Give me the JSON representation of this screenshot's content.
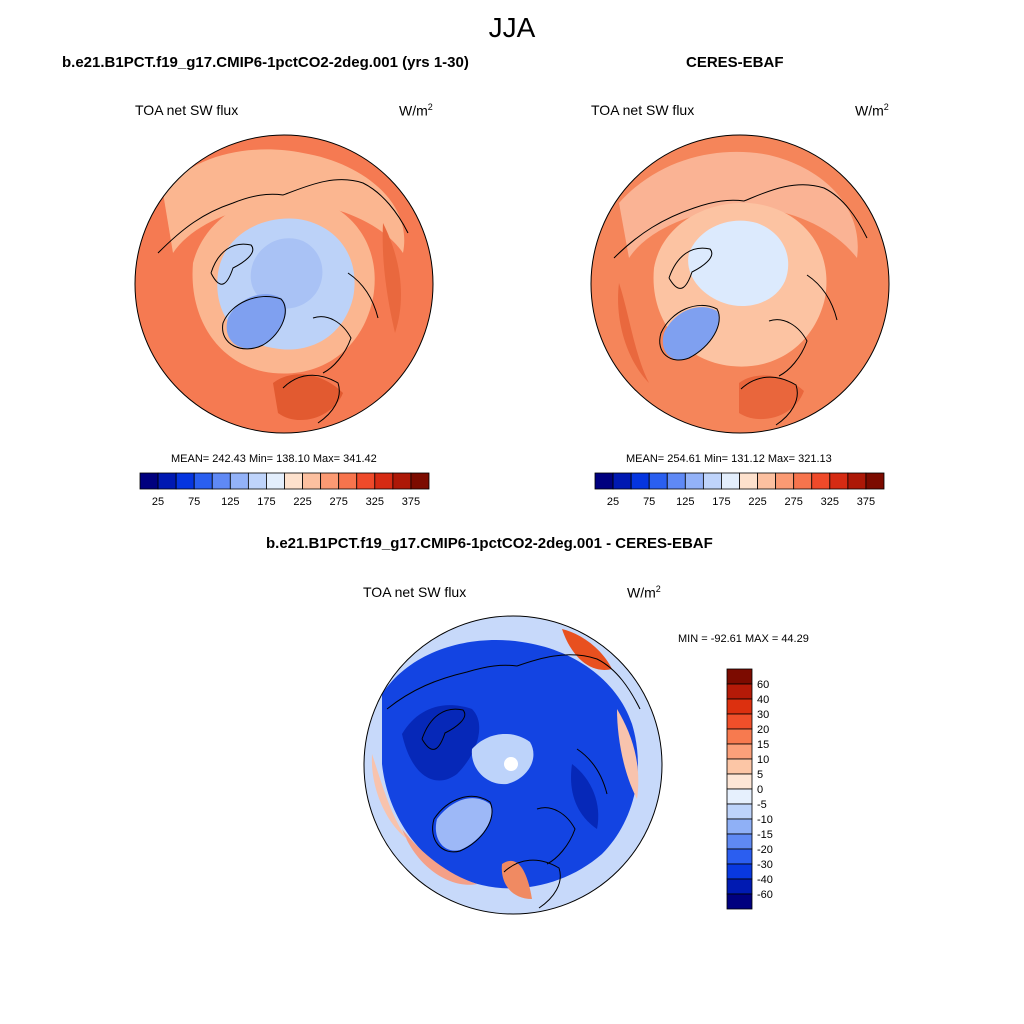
{
  "title": "JJA",
  "panels": [
    {
      "title": "b.e21.B1PCT.f19_g17.CMIP6-1pctCO2-2deg.001 (yrs 1-30)",
      "variable": "TOA net SW flux",
      "units_base": "W/m",
      "units_exp": "2",
      "stats": "MEAN= 242.43  Min= 138.10  Max= 341.42",
      "colorbar": {
        "tick_labels": [
          "25",
          "75",
          "125",
          "175",
          "225",
          "275",
          "325",
          "375"
        ],
        "colors": [
          "#00007f",
          "#0019b2",
          "#0535e0",
          "#2a5ff0",
          "#5f89f5",
          "#93b2f8",
          "#bfd4fb",
          "#e3eefc",
          "#fde1cd",
          "#fcc0a0",
          "#fb9a73",
          "#f7744d",
          "#ef4a2a",
          "#d62b13",
          "#ad1807",
          "#7c0b00"
        ]
      }
    },
    {
      "title": "CERES-EBAF",
      "variable": "TOA net SW flux",
      "units_base": "W/m",
      "units_exp": "2",
      "stats": "MEAN= 254.61  Min= 131.12  Max= 321.13",
      "colorbar": {
        "tick_labels": [
          "25",
          "75",
          "125",
          "175",
          "225",
          "275",
          "325",
          "375"
        ],
        "colors": [
          "#00007f",
          "#0019b2",
          "#0535e0",
          "#2a5ff0",
          "#5f89f5",
          "#93b2f8",
          "#bfd4fb",
          "#e3eefc",
          "#fde1cd",
          "#fcc0a0",
          "#fb9a73",
          "#f7744d",
          "#ef4a2a",
          "#d62b13",
          "#ad1807",
          "#7c0b00"
        ]
      }
    },
    {
      "title": "b.e21.B1PCT.f19_g17.CMIP6-1pctCO2-2deg.001 - CERES-EBAF",
      "variable": "TOA net SW flux",
      "units_base": "W/m",
      "units_exp": "2",
      "stats": "MIN = -92.61 MAX =  44.29",
      "colorbar": {
        "tick_labels": [
          "60",
          "40",
          "30",
          "20",
          "15",
          "10",
          "5",
          "0",
          "-5",
          "-10",
          "-15",
          "-20",
          "-30",
          "-40",
          "-60"
        ],
        "colors": [
          "#7c0b00",
          "#b51a08",
          "#dc300f",
          "#f04f2a",
          "#f77a4f",
          "#fba07a",
          "#fcc6a6",
          "#fde6d6",
          "#e6f0fd",
          "#bdd3fa",
          "#8fb0f6",
          "#5f89f3",
          "#2b5ef0",
          "#0838e0",
          "#001ab2",
          "#00007f"
        ]
      }
    }
  ],
  "colors": {
    "model_field": {
      "ocean": "#f57a52",
      "land": "#fbb690",
      "ice": "#bcd2f8",
      "sheet": "#7fa0f0",
      "pole": "#d9e7fc"
    },
    "obs_field": {
      "ocean": "#f5855a",
      "land": "#fcc3a2",
      "ice": "#dceafd",
      "sheet": "#7fa0f0",
      "pole": "#e8f1fe"
    },
    "diff_field": {
      "base": "#1344e2",
      "deep": "#0628b8",
      "warm": "#f4a088",
      "hot": "#e8501f",
      "neutral": "#c7d9fa"
    }
  }
}
